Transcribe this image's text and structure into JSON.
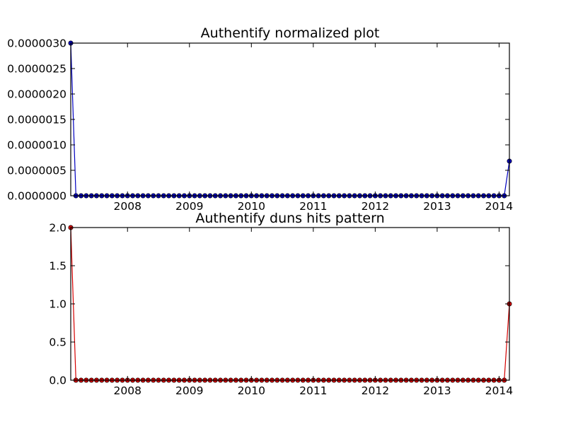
{
  "chart_data": [
    {
      "type": "line",
      "title": "Authentify normalized plot",
      "xlabel": "",
      "ylabel": "",
      "x_ticks": [
        "2008",
        "2009",
        "2010",
        "2011",
        "2012",
        "2013",
        "2014"
      ],
      "y_ticks": [
        "0.0000000",
        "0.0000005",
        "0.0000010",
        "0.0000015",
        "0.0000020",
        "0.0000025",
        "0.0000030"
      ],
      "xlim": [
        "2007-02",
        "2014-03"
      ],
      "ylim": [
        0,
        3e-06
      ],
      "grid": false,
      "color": "#0000bf",
      "series": [
        {
          "points": [
            [
              "2007-02",
              3e-06
            ],
            [
              "2007-03",
              0
            ],
            [
              "2007-04",
              0
            ],
            [
              "2007-05",
              0
            ],
            [
              "2007-06",
              0
            ],
            [
              "2007-07",
              0
            ],
            [
              "2007-08",
              0
            ],
            [
              "2007-09",
              0
            ],
            [
              "2007-10",
              0
            ],
            [
              "2007-11",
              0
            ],
            [
              "2007-12",
              0
            ],
            [
              "2008-01",
              0
            ],
            [
              "2008-02",
              0
            ],
            [
              "2008-03",
              0
            ],
            [
              "2008-04",
              0
            ],
            [
              "2008-05",
              0
            ],
            [
              "2008-06",
              0
            ],
            [
              "2008-07",
              0
            ],
            [
              "2008-08",
              0
            ],
            [
              "2008-09",
              0
            ],
            [
              "2008-10",
              0
            ],
            [
              "2008-11",
              0
            ],
            [
              "2008-12",
              0
            ],
            [
              "2009-01",
              0
            ],
            [
              "2009-02",
              0
            ],
            [
              "2009-03",
              0
            ],
            [
              "2009-04",
              0
            ],
            [
              "2009-05",
              0
            ],
            [
              "2009-06",
              0
            ],
            [
              "2009-07",
              0
            ],
            [
              "2009-08",
              0
            ],
            [
              "2009-09",
              0
            ],
            [
              "2009-10",
              0
            ],
            [
              "2009-11",
              0
            ],
            [
              "2009-12",
              0
            ],
            [
              "2010-01",
              0
            ],
            [
              "2010-02",
              0
            ],
            [
              "2010-03",
              0
            ],
            [
              "2010-04",
              0
            ],
            [
              "2010-05",
              0
            ],
            [
              "2010-06",
              0
            ],
            [
              "2010-07",
              0
            ],
            [
              "2010-08",
              0
            ],
            [
              "2010-09",
              0
            ],
            [
              "2010-10",
              0
            ],
            [
              "2010-11",
              0
            ],
            [
              "2010-12",
              0
            ],
            [
              "2011-01",
              0
            ],
            [
              "2011-02",
              0
            ],
            [
              "2011-03",
              0
            ],
            [
              "2011-04",
              0
            ],
            [
              "2011-05",
              0
            ],
            [
              "2011-06",
              0
            ],
            [
              "2011-07",
              0
            ],
            [
              "2011-08",
              0
            ],
            [
              "2011-09",
              0
            ],
            [
              "2011-10",
              0
            ],
            [
              "2011-11",
              0
            ],
            [
              "2011-12",
              0
            ],
            [
              "2012-01",
              0
            ],
            [
              "2012-02",
              0
            ],
            [
              "2012-03",
              0
            ],
            [
              "2012-04",
              0
            ],
            [
              "2012-05",
              0
            ],
            [
              "2012-06",
              0
            ],
            [
              "2012-07",
              0
            ],
            [
              "2012-08",
              0
            ],
            [
              "2012-09",
              0
            ],
            [
              "2012-10",
              0
            ],
            [
              "2012-11",
              0
            ],
            [
              "2012-12",
              0
            ],
            [
              "2013-01",
              0
            ],
            [
              "2013-02",
              0
            ],
            [
              "2013-03",
              0
            ],
            [
              "2013-04",
              0
            ],
            [
              "2013-05",
              0
            ],
            [
              "2013-06",
              0
            ],
            [
              "2013-07",
              0
            ],
            [
              "2013-08",
              0
            ],
            [
              "2013-09",
              0
            ],
            [
              "2013-10",
              0
            ],
            [
              "2013-11",
              0
            ],
            [
              "2013-12",
              0
            ],
            [
              "2014-01",
              0
            ],
            [
              "2014-02",
              0
            ],
            [
              "2014-03",
              6.8e-07
            ]
          ]
        }
      ]
    },
    {
      "type": "line",
      "title": "Authentify duns hits pattern",
      "xlabel": "",
      "ylabel": "",
      "x_ticks": [
        "2008",
        "2009",
        "2010",
        "2011",
        "2012",
        "2013",
        "2014"
      ],
      "y_ticks": [
        "0.0",
        "0.5",
        "1.0",
        "1.5",
        "2.0"
      ],
      "xlim": [
        "2007-02",
        "2014-03"
      ],
      "ylim": [
        0,
        2
      ],
      "grid": false,
      "color": "#d40000",
      "series": [
        {
          "points": [
            [
              "2007-02",
              2
            ],
            [
              "2007-03",
              0
            ],
            [
              "2007-04",
              0
            ],
            [
              "2007-05",
              0
            ],
            [
              "2007-06",
              0
            ],
            [
              "2007-07",
              0
            ],
            [
              "2007-08",
              0
            ],
            [
              "2007-09",
              0
            ],
            [
              "2007-10",
              0
            ],
            [
              "2007-11",
              0
            ],
            [
              "2007-12",
              0
            ],
            [
              "2008-01",
              0
            ],
            [
              "2008-02",
              0
            ],
            [
              "2008-03",
              0
            ],
            [
              "2008-04",
              0
            ],
            [
              "2008-05",
              0
            ],
            [
              "2008-06",
              0
            ],
            [
              "2008-07",
              0
            ],
            [
              "2008-08",
              0
            ],
            [
              "2008-09",
              0
            ],
            [
              "2008-10",
              0
            ],
            [
              "2008-11",
              0
            ],
            [
              "2008-12",
              0
            ],
            [
              "2009-01",
              0
            ],
            [
              "2009-02",
              0
            ],
            [
              "2009-03",
              0
            ],
            [
              "2009-04",
              0
            ],
            [
              "2009-05",
              0
            ],
            [
              "2009-06",
              0
            ],
            [
              "2009-07",
              0
            ],
            [
              "2009-08",
              0
            ],
            [
              "2009-09",
              0
            ],
            [
              "2009-10",
              0
            ],
            [
              "2009-11",
              0
            ],
            [
              "2009-12",
              0
            ],
            [
              "2010-01",
              0
            ],
            [
              "2010-02",
              0
            ],
            [
              "2010-03",
              0
            ],
            [
              "2010-04",
              0
            ],
            [
              "2010-05",
              0
            ],
            [
              "2010-06",
              0
            ],
            [
              "2010-07",
              0
            ],
            [
              "2010-08",
              0
            ],
            [
              "2010-09",
              0
            ],
            [
              "2010-10",
              0
            ],
            [
              "2010-11",
              0
            ],
            [
              "2010-12",
              0
            ],
            [
              "2011-01",
              0
            ],
            [
              "2011-02",
              0
            ],
            [
              "2011-03",
              0
            ],
            [
              "2011-04",
              0
            ],
            [
              "2011-05",
              0
            ],
            [
              "2011-06",
              0
            ],
            [
              "2011-07",
              0
            ],
            [
              "2011-08",
              0
            ],
            [
              "2011-09",
              0
            ],
            [
              "2011-10",
              0
            ],
            [
              "2011-11",
              0
            ],
            [
              "2011-12",
              0
            ],
            [
              "2012-01",
              0
            ],
            [
              "2012-02",
              0
            ],
            [
              "2012-03",
              0
            ],
            [
              "2012-04",
              0
            ],
            [
              "2012-05",
              0
            ],
            [
              "2012-06",
              0
            ],
            [
              "2012-07",
              0
            ],
            [
              "2012-08",
              0
            ],
            [
              "2012-09",
              0
            ],
            [
              "2012-10",
              0
            ],
            [
              "2012-11",
              0
            ],
            [
              "2012-12",
              0
            ],
            [
              "2013-01",
              0
            ],
            [
              "2013-02",
              0
            ],
            [
              "2013-03",
              0
            ],
            [
              "2013-04",
              0
            ],
            [
              "2013-05",
              0
            ],
            [
              "2013-06",
              0
            ],
            [
              "2013-07",
              0
            ],
            [
              "2013-08",
              0
            ],
            [
              "2013-09",
              0
            ],
            [
              "2013-10",
              0
            ],
            [
              "2013-11",
              0
            ],
            [
              "2013-12",
              0
            ],
            [
              "2014-01",
              0
            ],
            [
              "2014-02",
              0
            ],
            [
              "2014-03",
              1
            ]
          ]
        }
      ]
    }
  ]
}
